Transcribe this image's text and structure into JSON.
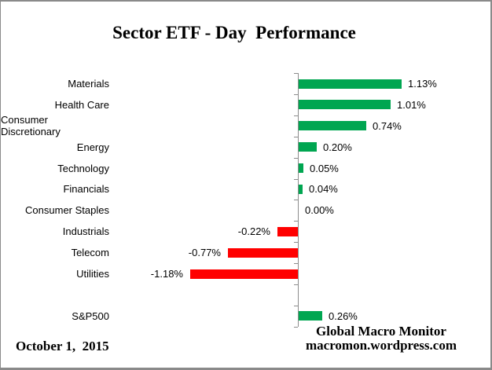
{
  "chart_data": {
    "type": "bar",
    "orientation": "horizontal",
    "title": "Sector ETF - Day  Performance",
    "categories": [
      "Materials",
      "Health Care",
      "Consumer Discretionary",
      "Energy",
      "Technology",
      "Financials",
      "Consumer Staples",
      "Industrials",
      "Telecom",
      "Utilities",
      "",
      "S&P500"
    ],
    "values": [
      1.13,
      1.01,
      0.74,
      0.2,
      0.05,
      0.04,
      0.0,
      -0.22,
      -0.77,
      -1.18,
      null,
      0.26
    ],
    "value_labels": [
      "1.13%",
      "1.01%",
      "0.74%",
      "0.20%",
      "0.05%",
      "0.04%",
      "0.00%",
      "-0.22%",
      "-0.77%",
      "-1.18%",
      "",
      "0.26%"
    ],
    "unit": "%",
    "value_axis_visible": false,
    "grid": false,
    "legend": false
  },
  "footer": {
    "date": "October 1,  2015",
    "credit_line1": "Global Macro Monitor",
    "credit_line2": "macromon.wordpress.com"
  },
  "colors": {
    "positive": "#00A651",
    "negative": "#FF0000",
    "axis": "#8C8C8C",
    "background": "#FFFFFF",
    "border": "#8A8A8A",
    "text": "#000000"
  }
}
